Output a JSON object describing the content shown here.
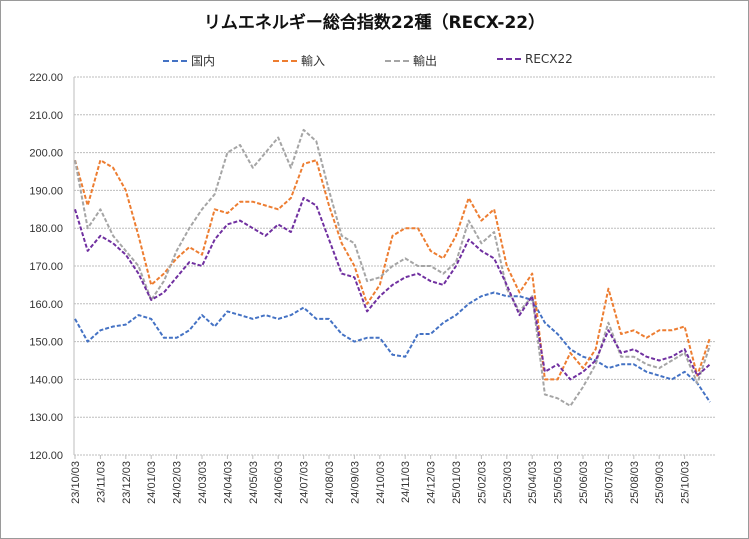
{
  "chart_data": {
    "type": "line",
    "title": "リムエネルギー総合指数22種（RECX-22）",
    "xlabel": "",
    "ylabel": "",
    "ylim": [
      120,
      220
    ],
    "yticks": [
      "120.00",
      "130.00",
      "140.00",
      "150.00",
      "160.00",
      "170.00",
      "180.00",
      "190.00",
      "200.00",
      "210.00",
      "220.00"
    ],
    "xticks": [
      "23/10/03",
      "23/11/03",
      "23/12/03",
      "24/01/03",
      "24/02/03",
      "24/03/03",
      "24/04/03",
      "24/05/03",
      "24/06/03",
      "24/07/03",
      "24/08/03",
      "24/09/03",
      "24/10/03",
      "24/11/03",
      "24/12/03",
      "25/01/03",
      "25/02/03",
      "25/03/03",
      "25/04/03",
      "25/05/03",
      "25/06/03",
      "25/07/03",
      "25/08/03",
      "25/09/03",
      "25/10/03"
    ],
    "x_unit": "months since 23/10/03",
    "x": [
      0,
      0.5,
      1,
      1.5,
      2,
      2.5,
      3,
      3.5,
      4,
      4.5,
      5,
      5.5,
      6,
      6.5,
      7,
      7.5,
      8,
      8.5,
      9,
      9.5,
      10,
      10.5,
      11,
      11.5,
      12,
      12.5,
      13,
      13.5,
      14,
      14.5,
      15,
      15.5,
      16,
      16.5,
      17,
      17.5,
      18,
      18.5,
      19,
      19.5,
      20,
      20.5,
      21,
      21.5,
      22,
      22.5,
      23,
      23.5,
      24,
      24.5,
      25
    ],
    "grid": true,
    "legend_position": "top",
    "series": [
      {
        "name": "国内",
        "color": "#4472c4",
        "values": [
          156,
          150,
          153,
          154,
          154.5,
          157,
          156,
          151,
          151,
          153,
          157,
          154,
          158,
          157,
          156,
          157,
          156,
          157,
          159,
          156,
          156,
          152,
          150,
          151,
          151,
          146.5,
          146,
          152,
          152,
          155,
          157,
          160,
          162,
          163,
          162,
          162,
          161,
          155,
          152,
          148,
          146,
          145,
          143,
          144,
          144,
          142,
          141,
          140,
          142,
          139,
          134
        ]
      },
      {
        "name": "輸入",
        "color": "#ed7d31",
        "values": [
          198,
          186,
          198,
          196,
          190,
          178,
          165,
          168,
          172,
          175,
          173,
          185,
          184,
          187,
          187,
          186,
          185,
          188,
          197,
          198,
          186,
          176,
          170,
          160,
          165,
          178,
          180,
          180,
          174,
          172,
          178,
          188,
          182,
          185,
          170,
          163,
          168,
          140,
          140,
          147,
          143,
          148,
          164,
          152,
          153,
          151,
          153,
          153,
          154,
          141,
          151
        ]
      },
      {
        "name": "輸出",
        "color": "#a5a5a5",
        "values": [
          198,
          180,
          185,
          178,
          174,
          170,
          161,
          166,
          174,
          180,
          185,
          189,
          200,
          202,
          196,
          200,
          204,
          196,
          206,
          203,
          190,
          178,
          176,
          166,
          167,
          170,
          172,
          170,
          170,
          168,
          171,
          182,
          176,
          179,
          164,
          158,
          162,
          136,
          135,
          133,
          138,
          144,
          155,
          146,
          146,
          144,
          143,
          145,
          147,
          139,
          149
        ]
      },
      {
        "name": "RECX22",
        "color": "#7030a0",
        "values": [
          185,
          174,
          178,
          176,
          173,
          168,
          161,
          163,
          167,
          171,
          170,
          177,
          181,
          182,
          180,
          178,
          181,
          179,
          188,
          186,
          177,
          168,
          167,
          158,
          162,
          165,
          167,
          168,
          166,
          165,
          170,
          177,
          174,
          172,
          165,
          157,
          162,
          142,
          144,
          140,
          142,
          145,
          153,
          147,
          148,
          146,
          145,
          146,
          148,
          141,
          144
        ]
      }
    ]
  }
}
